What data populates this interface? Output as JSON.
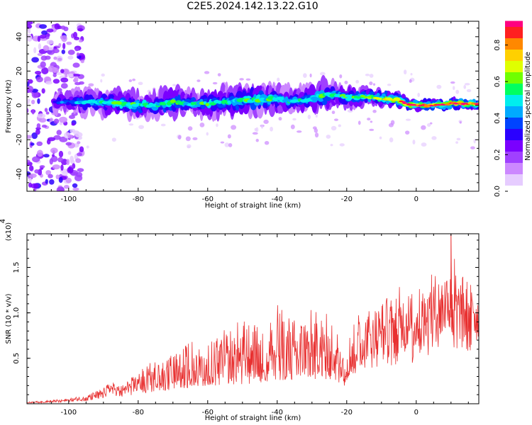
{
  "figure": {
    "title": "C2E5.2024.142.13.22.G10"
  },
  "colors": {
    "snr_line": "#e83030",
    "colormap": [
      "#ffffff",
      "#e6ccff",
      "#cc88ff",
      "#a040ff",
      "#7a00ff",
      "#2a00ff",
      "#0044ff",
      "#00aaff",
      "#00eeee",
      "#00ff60",
      "#70ff00",
      "#dfff00",
      "#ffd000",
      "#ff8800",
      "#ff2020",
      "#ff0080"
    ]
  },
  "chart_data": [
    {
      "type": "heatmap",
      "title": "C2E5.2024.142.13.22.G10",
      "xlabel": "Height of straight line (km)",
      "ylabel": "Frequency (Hz)",
      "xlim": [
        -112,
        18
      ],
      "ylim": [
        -50,
        49
      ],
      "x_ticks": [
        -100,
        -80,
        -60,
        -40,
        -20,
        0
      ],
      "y_ticks": [
        -40,
        -20,
        0,
        20,
        40
      ],
      "colorbar": {
        "label": "Normalized spectral amplitude",
        "range": [
          0,
          0.93
        ],
        "ticks": [
          0.0,
          0.2,
          0.4,
          0.6,
          0.8
        ]
      },
      "ridge": {
        "comment_free": true,
        "x": [
          -104,
          -95,
          -85,
          -75,
          -70,
          -65,
          -60,
          -55,
          -50,
          -45,
          -40,
          -35,
          -30,
          -27,
          -25,
          -20,
          -15,
          -10,
          -5,
          -3,
          0,
          5,
          10,
          15,
          18
        ],
        "center_freq": [
          2,
          2,
          1,
          0,
          2,
          1,
          1,
          2,
          3,
          3,
          4,
          2,
          4,
          6,
          6,
          5,
          5,
          4,
          3,
          1,
          0,
          0,
          1,
          1,
          1
        ],
        "halfwidth": [
          6,
          7,
          7,
          7,
          8,
          7,
          7,
          8,
          8,
          8,
          8,
          7,
          8,
          9,
          8,
          6,
          5,
          5,
          4,
          3,
          3,
          3,
          3,
          3,
          3
        ],
        "peak_amplitude": [
          0.35,
          0.45,
          0.55,
          0.5,
          0.55,
          0.5,
          0.55,
          0.5,
          0.55,
          0.55,
          0.5,
          0.5,
          0.5,
          0.55,
          0.5,
          0.55,
          0.6,
          0.65,
          0.75,
          0.9,
          0.9,
          0.9,
          0.93,
          0.9,
          0.85
        ]
      },
      "noise_region": {
        "x": [
          -112,
          -96
        ],
        "freq": [
          -50,
          49
        ],
        "amplitude": [
          0.05,
          0.3
        ]
      }
    },
    {
      "type": "line",
      "xlabel": "Height of straight line (km)",
      "ylabel": "SNR (10 * v/v)",
      "y_multiplier": "(x10^4)",
      "xlim": [
        -112,
        18
      ],
      "ylim": [
        0,
        1.87
      ],
      "x_ticks": [
        -100,
        -80,
        -60,
        -40,
        -20,
        0
      ],
      "y_ticks": [
        0.5,
        1.0,
        1.5
      ],
      "series": [
        {
          "x": [
            -112,
            -105,
            -100,
            -95,
            -90,
            -88,
            -85,
            -80,
            -75,
            -70,
            -65,
            -60,
            -55,
            -50,
            -45,
            -40,
            -35,
            -30,
            -25,
            -20,
            -18,
            -15,
            -10,
            -5,
            0,
            5,
            8,
            10,
            12,
            15,
            18
          ],
          "y_base": [
            0.01,
            0.02,
            0.03,
            0.05,
            0.1,
            0.15,
            0.12,
            0.18,
            0.22,
            0.25,
            0.3,
            0.32,
            0.35,
            0.35,
            0.38,
            0.42,
            0.4,
            0.45,
            0.45,
            0.3,
            0.55,
            0.6,
            0.65,
            0.7,
            0.75,
            0.85,
            0.9,
            0.95,
            0.9,
            0.95,
            0.95
          ],
          "y_peak": [
            0.02,
            0.04,
            0.06,
            0.1,
            0.17,
            0.25,
            0.2,
            0.35,
            0.5,
            0.55,
            0.72,
            0.68,
            0.82,
            0.95,
            0.85,
            1.1,
            0.95,
            1.05,
            1.0,
            0.65,
            1.0,
            1.05,
            1.15,
            1.3,
            1.25,
            1.45,
            1.5,
            1.88,
            1.42,
            1.4,
            1.15
          ]
        }
      ]
    }
  ]
}
